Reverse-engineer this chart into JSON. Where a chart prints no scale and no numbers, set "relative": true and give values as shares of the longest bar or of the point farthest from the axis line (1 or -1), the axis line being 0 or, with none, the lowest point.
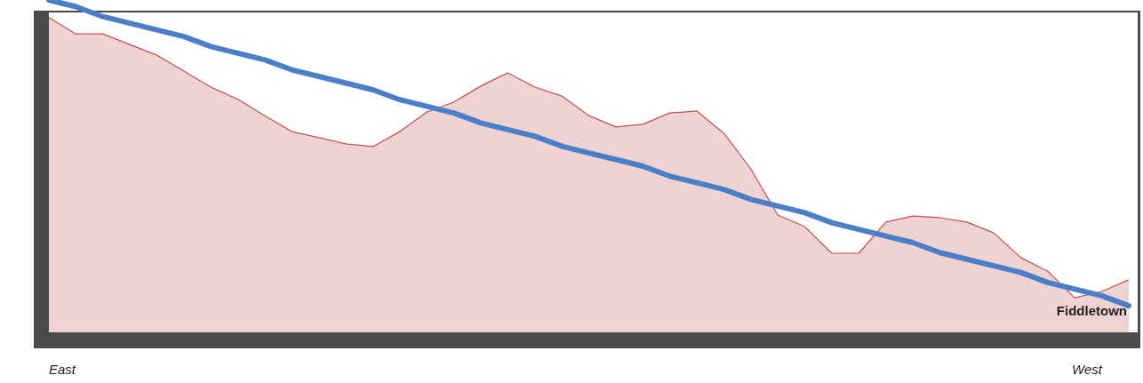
{
  "chart_data": {
    "type": "area",
    "relative": true,
    "categories": [
      null,
      null,
      null,
      null,
      null,
      null,
      null,
      null,
      null,
      null,
      null,
      null,
      null,
      null,
      null,
      null,
      null,
      null,
      null,
      null,
      null,
      null,
      null,
      null,
      null,
      null,
      null,
      null,
      null,
      null,
      null,
      null,
      null,
      null,
      null,
      null,
      null,
      null,
      null,
      null,
      null
    ],
    "series": [
      {
        "color": "#c0504d",
        "values": [
          0.947,
          0.898,
          0.898,
          0.866,
          0.834,
          0.786,
          0.738,
          0.701,
          0.652,
          0.604,
          0.586,
          0.567,
          0.559,
          0.604,
          0.663,
          0.693,
          0.741,
          0.781,
          0.738,
          0.711,
          0.652,
          0.618,
          0.626,
          0.66,
          0.666,
          0.599,
          0.492,
          0.353,
          0.318,
          0.238,
          0.238,
          0.332,
          0.35,
          0.345,
          0.332,
          0.299,
          0.225,
          0.184,
          0.104,
          0.123,
          0.158
        ]
      },
      {
        "type": "line",
        "color": "#4a7fc8",
        "values": [
          1,
          0.98,
          0.95,
          0.93,
          0.91,
          0.89,
          0.86,
          0.84,
          0.82,
          0.79,
          0.77,
          0.75,
          0.73,
          0.7,
          0.68,
          0.66,
          0.63,
          0.61,
          0.59,
          0.56,
          0.54,
          0.52,
          0.5,
          0.47,
          0.45,
          0.43,
          0.4,
          0.38,
          0.36,
          0.33,
          0.31,
          0.29,
          0.27,
          0.24,
          0.22,
          0.2,
          0.18,
          0.15,
          0.13,
          0.11,
          0.08
        ]
      }
    ],
    "annotations": [
      "Fiddletown",
      "East",
      "West"
    ],
    "grid": false
  }
}
